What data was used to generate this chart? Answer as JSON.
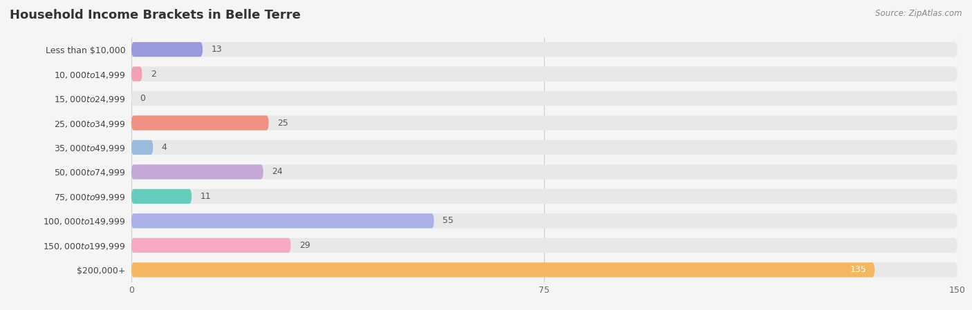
{
  "title": "Household Income Brackets in Belle Terre",
  "source": "Source: ZipAtlas.com",
  "categories": [
    "Less than $10,000",
    "$10,000 to $14,999",
    "$15,000 to $24,999",
    "$25,000 to $34,999",
    "$35,000 to $49,999",
    "$50,000 to $74,999",
    "$75,000 to $99,999",
    "$100,000 to $149,999",
    "$150,000 to $199,999",
    "$200,000+"
  ],
  "values": [
    13,
    2,
    0,
    25,
    4,
    24,
    11,
    55,
    29,
    135
  ],
  "colors": [
    "#9999dd",
    "#f4a0b0",
    "#f5c888",
    "#f09080",
    "#99bbdd",
    "#c4a8d8",
    "#66ccbb",
    "#aab0e8",
    "#f8a8c0",
    "#f5b860"
  ],
  "xlim": [
    0,
    150
  ],
  "xticks": [
    0,
    75,
    150
  ],
  "bg_color": "#f5f5f5",
  "bar_bg_color": "#e8e8e8",
  "title_fontsize": 13,
  "label_fontsize": 9,
  "value_fontsize": 9,
  "source_fontsize": 8.5,
  "bar_height": 0.6,
  "value_label_color_default": "#555555",
  "value_label_color_last": "#ffffff"
}
